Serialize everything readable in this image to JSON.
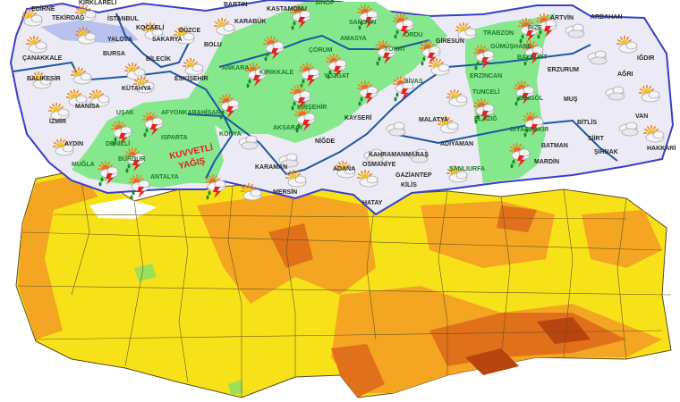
{
  "maps": {
    "forecast": {
      "warning_label": [
        "KUVVETLİ",
        "YAĞIŞ"
      ],
      "colors": {
        "land": "#eceaf4",
        "storm_zone": "#86e88c",
        "border": "#3a3fc8",
        "sea": "#ffffff",
        "marmara": "#b9c2ee",
        "warning": "#e0201a"
      },
      "cities": [
        "EDİRNE",
        "TEKİRDAĞ",
        "İSTANBUL",
        "YALOVA",
        "BURSA",
        "ÇANAKKALE",
        "BİLECİK",
        "SAKARYA",
        "DÜZCE",
        "BOLU",
        "BARTIN",
        "KARABÜK",
        "KASTAMONU",
        "ESKİŞEHİR",
        "KÜTAHYA",
        "MANİSA",
        "İZMİR",
        "AYDIN",
        "UŞAK",
        "AFYONKARAHİSAR",
        "DENİZLİ",
        "ISPARTA",
        "BURDUR",
        "MUĞLA",
        "ANTALYA",
        "KARAMAN",
        "KONYA",
        "AKSARAY",
        "NİĞDE",
        "MERSİN",
        "KIRIKKALE",
        "ÇORUM",
        "YOZGAT",
        "KIRŞEHİR",
        "ANKARA",
        "ADANA",
        "SAMSUN",
        "AMASYA",
        "TOKAT",
        "ORDU",
        "GİRESUN",
        "TRABZON",
        "RİZE",
        "GÜMÜŞHANE",
        "BAYBURT",
        "ARTVİN",
        "ARDAHAN",
        "IĞDIR",
        "ERZURUM",
        "AĞRI",
        "ERZİNCAN",
        "TUNCELİ",
        "BİNGÖL",
        "MUŞ",
        "SİVAS",
        "KAYSERİ",
        "MALATYA",
        "ELAZIĞ",
        "DİYARBAKIR",
        "BİTLİS",
        "VAN",
        "BATMAN",
        "SİİRT",
        "ŞIRNAK",
        "HAKKARİ",
        "MARDİN",
        "ADIYAMAN",
        "KAHRAMANMARAŞ",
        "OSMANİYE",
        "GAZİANTEP",
        "ŞANLIURFA",
        "KİLİS",
        "HATAY",
        "SİNOP",
        "KIRKLARELİ",
        "KOCAELİ",
        "BALIKESİR"
      ],
      "icons": [
        "partly-cloudy-icon",
        "storm-icon",
        "cloud-icon"
      ]
    },
    "temperature": {
      "colors": {
        "yellow": "#f7e21a",
        "orange": "#f4a521",
        "dark_orange": "#e0701a",
        "brown": "#b8440f",
        "green": "#9be05a",
        "border": "#5a4a20"
      }
    }
  }
}
